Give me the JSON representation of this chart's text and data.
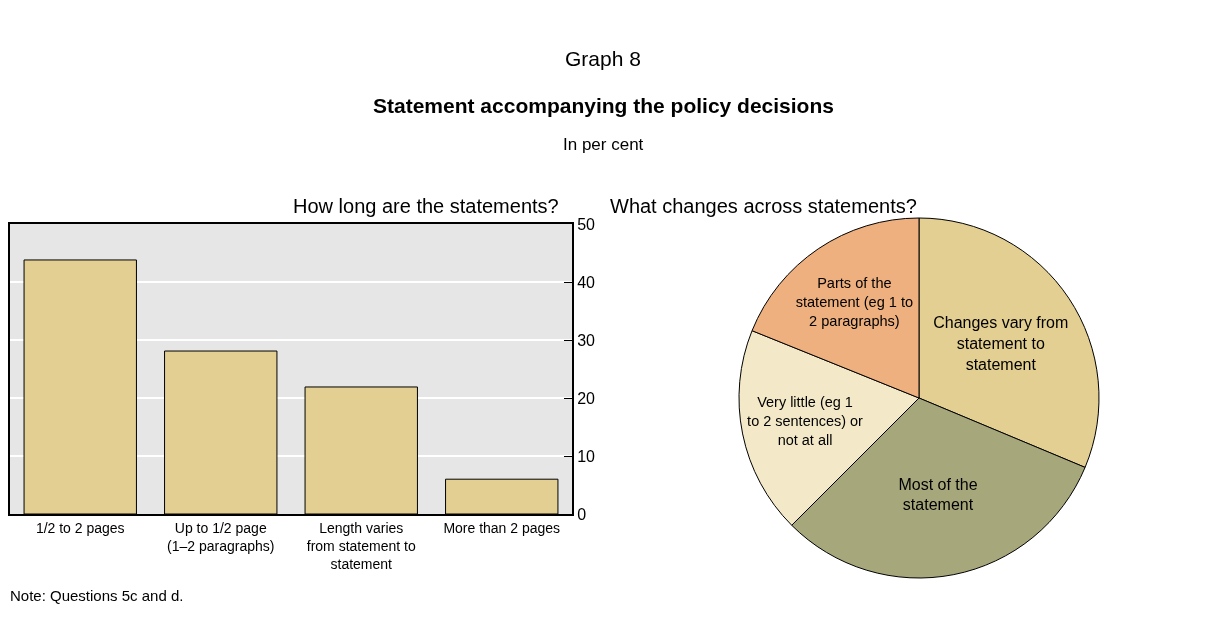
{
  "chart_data": [
    {
      "type": "bar",
      "title": "How long are the statements?",
      "categories": [
        "1/2 to 2 pages",
        "Up to 1/2 page (1–2 paragraphs)",
        "Length varies from statement to statement",
        "More than 2 pages"
      ],
      "values": [
        43.8,
        28.1,
        21.9,
        6.0
      ],
      "color": "#e3cf91",
      "ylim": [
        0,
        50
      ],
      "yticks": [
        0,
        10,
        20,
        30,
        40,
        50
      ],
      "grid": "y",
      "annotations": [
        "Graph 8",
        "Statement accompanying the policy decisions",
        "In per cent",
        "Note: Questions 5c and d."
      ]
    },
    {
      "type": "pie",
      "title": "What changes across statements?",
      "categories": [
        "Changes vary from statement to statement",
        "Most of the statement",
        "Very little (eg 1 to 2 sentences) or not at all",
        "Parts of the statement (eg 1 to 2 paragraphs)"
      ],
      "values": [
        31.3,
        31.2,
        18.6,
        18.9
      ],
      "colors": [
        "#e3cf91",
        "#a6a87c",
        "#f3e9c8",
        "#eeb07f"
      ]
    }
  ]
}
